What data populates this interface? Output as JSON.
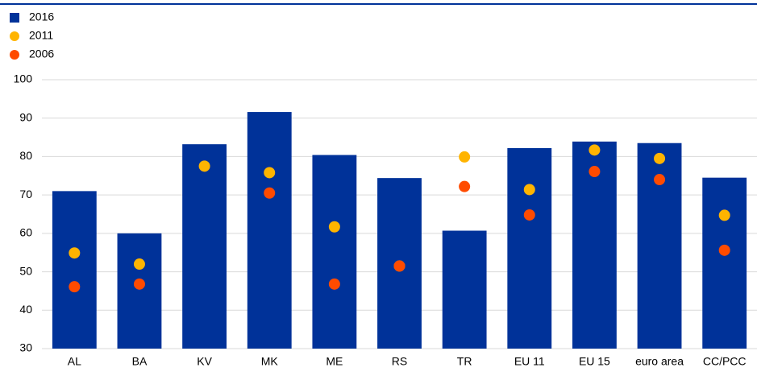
{
  "chart_data": {
    "type": "bar",
    "categories": [
      "AL",
      "BA",
      "KV",
      "MK",
      "ME",
      "RS",
      "TR",
      "EU 11",
      "EU 15",
      "euro area",
      "CC/PCC"
    ],
    "series": [
      {
        "name": "2016",
        "color": "#003299",
        "mark": "bar",
        "values": [
          71,
          60,
          83.2,
          91.6,
          80.4,
          74.4,
          60.7,
          82.2,
          83.9,
          83.5,
          74.5
        ]
      },
      {
        "name": "2011",
        "color": "#ffb400",
        "mark": "dot",
        "values": [
          54.9,
          52,
          77.5,
          75.8,
          61.7,
          51.5,
          79.9,
          71.4,
          81.7,
          79.5,
          64.7
        ]
      },
      {
        "name": "2006",
        "color": "#ff4b00",
        "mark": "dot",
        "values": [
          46.1,
          46.8,
          null,
          70.5,
          46.8,
          51.5,
          72.2,
          64.8,
          76.1,
          74,
          55.6
        ]
      }
    ],
    "ylim": [
      30,
      100
    ],
    "yticks": [
      30,
      40,
      50,
      60,
      70,
      80,
      90,
      100
    ],
    "grid": true
  }
}
